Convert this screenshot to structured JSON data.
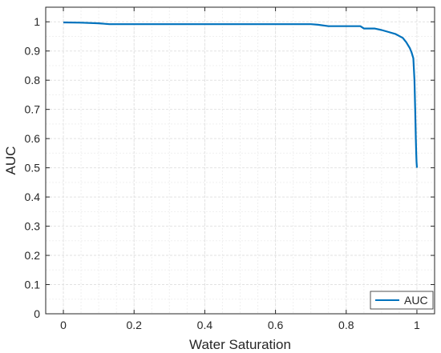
{
  "colors": {
    "series": "#0072bd",
    "grid_major": "#e2e2e2",
    "grid_minor": "#f0f0f0",
    "axes": "#262626"
  },
  "chart_data": {
    "type": "line",
    "title": "",
    "xlabel": "Water Saturation",
    "ylabel": "AUC",
    "xlim": [
      -0.05,
      1.05
    ],
    "ylim": [
      0,
      1.05
    ],
    "xticks": [
      0,
      0.2,
      0.4,
      0.6,
      0.8,
      1
    ],
    "xtick_labels": [
      "0",
      "0.2",
      "0.4",
      "0.6",
      "0.8",
      "1"
    ],
    "yticks": [
      0,
      0.1,
      0.2,
      0.3,
      0.4,
      0.5,
      0.6,
      0.7,
      0.8,
      0.9,
      1
    ],
    "ytick_labels": [
      "0",
      "0.1",
      "0.2",
      "0.3",
      "0.4",
      "0.5",
      "0.6",
      "0.7",
      "0.8",
      "0.9",
      "1"
    ],
    "grid": true,
    "minor_grid": true,
    "legend_position": "bottom-right",
    "series": [
      {
        "name": "AUC",
        "x": [
          0,
          0.05,
          0.1,
          0.13,
          0.2,
          0.4,
          0.6,
          0.7,
          0.72,
          0.75,
          0.8,
          0.84,
          0.85,
          0.88,
          0.9,
          0.92,
          0.94,
          0.96,
          0.97,
          0.98,
          0.985,
          0.99,
          0.993,
          0.995,
          0.997,
          0.998,
          0.999,
          1.0
        ],
        "y": [
          0.998,
          0.997,
          0.995,
          0.992,
          0.992,
          0.992,
          0.992,
          0.992,
          0.99,
          0.985,
          0.985,
          0.985,
          0.977,
          0.977,
          0.972,
          0.965,
          0.958,
          0.945,
          0.93,
          0.91,
          0.895,
          0.875,
          0.8,
          0.7,
          0.6,
          0.55,
          0.52,
          0.5
        ]
      }
    ]
  }
}
